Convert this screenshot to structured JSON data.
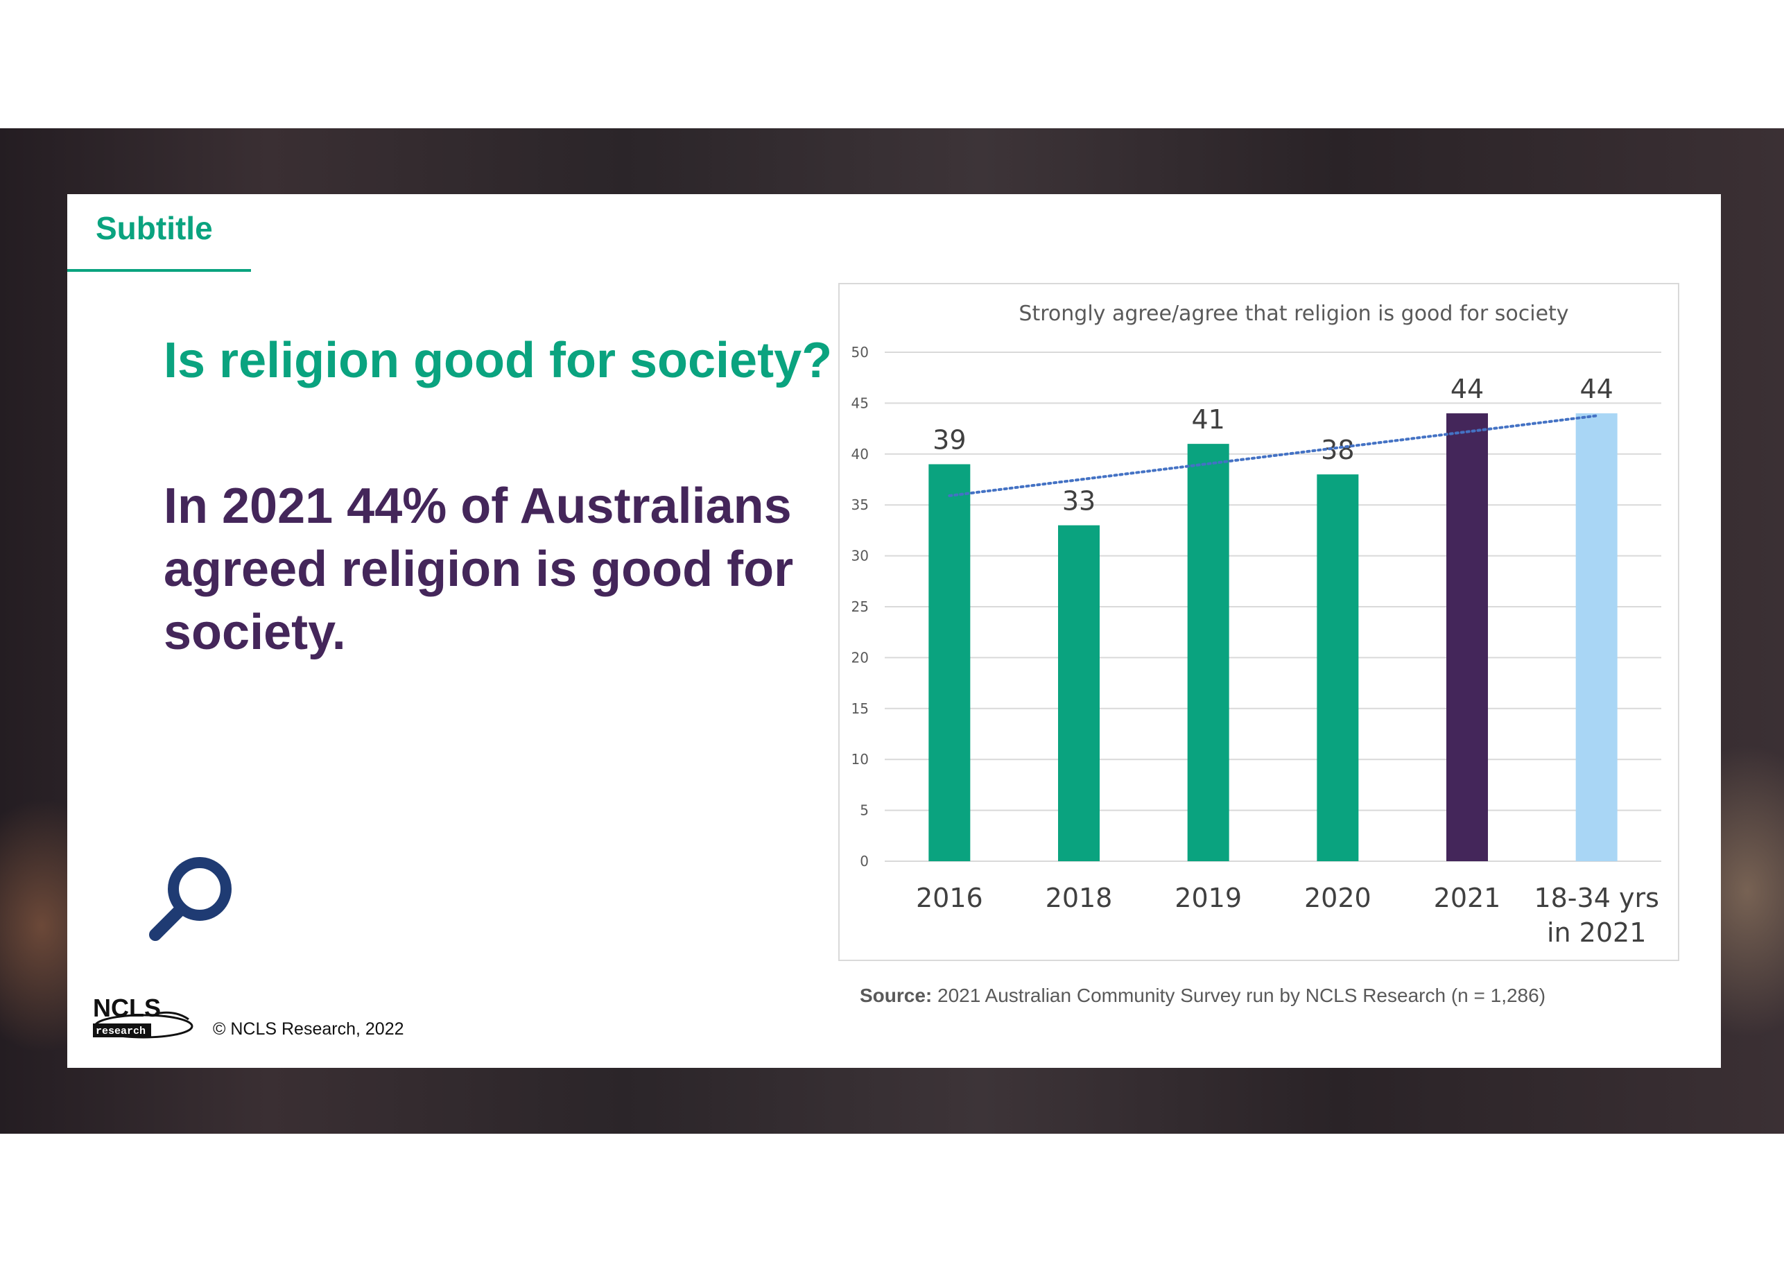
{
  "slide": {
    "subtitle": "Subtitle",
    "question": "Is religion good for society?",
    "headline": "In 2021 44% of Australians agreed religion is good for society.",
    "copyright": "© NCLS Research, 2022",
    "logo_text": "NCLS research",
    "source_label": "Source:",
    "source_text": "2021 Australian Community Survey run by NCLS Research (n = 1,286)",
    "icon": "search-icon",
    "colors": {
      "teal": "#0aa37f",
      "purple": "#44265a",
      "light_blue": "#a9d6f5",
      "trendline": "#4472c4",
      "navy_icon": "#1f3b73"
    }
  },
  "chart_data": {
    "type": "bar",
    "title": "Strongly agree/agree that religion is good for society",
    "categories": [
      "2016",
      "2018",
      "2019",
      "2020",
      "2021",
      "18-34 yrs in 2021"
    ],
    "values": [
      39,
      33,
      41,
      38,
      44,
      44
    ],
    "data_labels": [
      "39",
      "33",
      "41",
      "38",
      "44",
      "44"
    ],
    "bar_colors": [
      "#0aa37f",
      "#0aa37f",
      "#0aa37f",
      "#0aa37f",
      "#44265a",
      "#a9d6f5"
    ],
    "ylim": [
      0,
      50
    ],
    "yticks": [
      0,
      5,
      10,
      15,
      20,
      25,
      30,
      35,
      40,
      45,
      50
    ],
    "grid": true,
    "trendline": {
      "type": "linear",
      "style": "dotted",
      "color": "#4472c4"
    },
    "xlabel": "",
    "ylabel": ""
  }
}
